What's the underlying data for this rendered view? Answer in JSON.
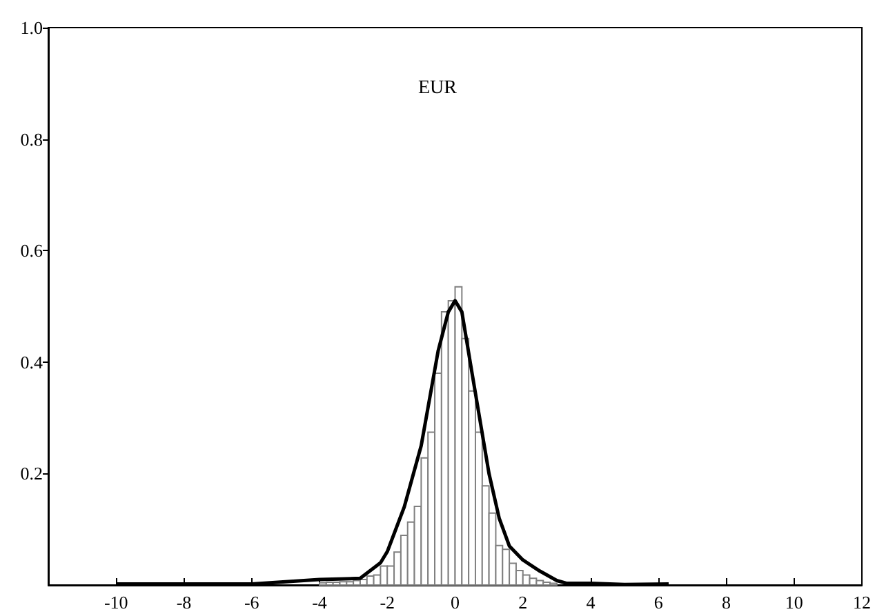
{
  "chart_data": {
    "type": "histogram",
    "title": "EUR",
    "xlim": [
      -12,
      12
    ],
    "xticks": [
      -10,
      -8,
      -6,
      -4,
      -2,
      0,
      2,
      4,
      6,
      8,
      10,
      12
    ],
    "ylim": [
      0,
      1
    ],
    "yticks": [
      0.2,
      0.4,
      0.6,
      0.8,
      {
        "value": 1,
        "label": "1.0"
      }
    ],
    "grid": false,
    "series": [
      {
        "color": "#808080",
        "bins": [
          -4.0,
          -3.8,
          -3.6,
          -3.4,
          -3.2,
          -3.0,
          -2.8,
          -2.6,
          -2.4,
          -2.2,
          -2.0,
          -1.8,
          -1.6,
          -1.4,
          -1.2,
          -1.0,
          -0.8,
          -0.6,
          -0.4,
          -0.2,
          0.0,
          0.2,
          0.4,
          0.6,
          0.8,
          1.0,
          1.2,
          1.4,
          1.6,
          1.8,
          2.0,
          2.2,
          2.4,
          2.6,
          2.8,
          3.0,
          3.2
        ],
        "values": [
          0.004,
          0.005,
          0.005,
          0.006,
          0.006,
          0.008,
          0.01,
          0.016,
          0.018,
          0.034,
          0.034,
          0.059,
          0.089,
          0.113,
          0.141,
          0.228,
          0.274,
          0.38,
          0.49,
          0.51,
          0.535,
          0.442,
          0.348,
          0.274,
          0.178,
          0.129,
          0.071,
          0.064,
          0.039,
          0.026,
          0.018,
          0.012,
          0.008,
          0.005,
          0.003,
          null
        ]
      },
      {
        "type": "line",
        "color": "#000000",
        "x": [
          -10,
          -6,
          -4,
          -2.8,
          -2.2,
          -2,
          -1.5,
          -1,
          -0.5,
          -0.2,
          0,
          0.2,
          0.5,
          1,
          1.3,
          1.6,
          2,
          2.5,
          3,
          3.3,
          4,
          5,
          6.3
        ],
        "values": [
          0.002,
          0.002,
          0.01,
          0.012,
          0.04,
          0.06,
          0.14,
          0.25,
          0.42,
          0.49,
          0.51,
          0.49,
          0.38,
          0.2,
          0.12,
          0.07,
          0.045,
          0.025,
          0.008,
          0.003,
          0.003,
          0.001,
          0.002
        ]
      }
    ]
  }
}
